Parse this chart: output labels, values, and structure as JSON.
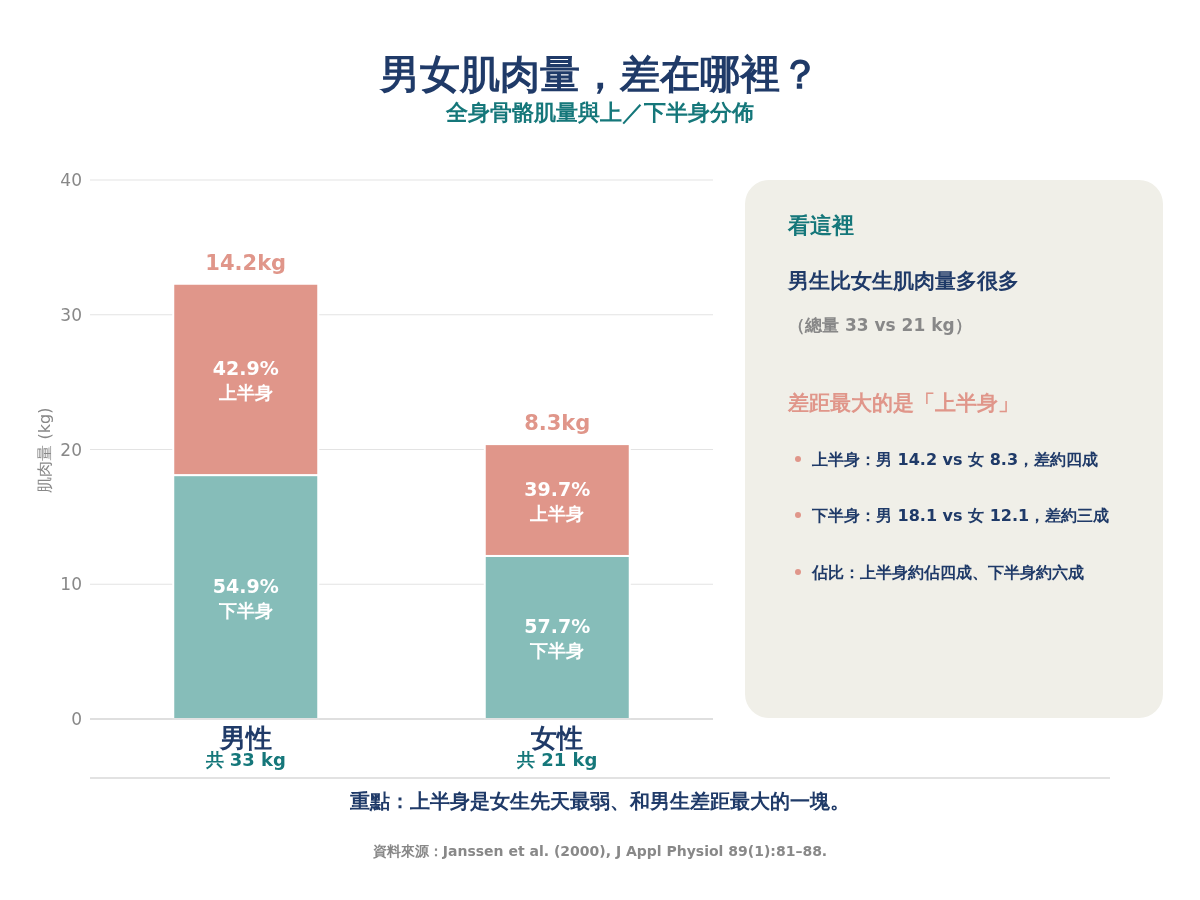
{
  "chart_data": [
    {
      "type": "bar",
      "title": "男女肌肉量，差在哪裡？",
      "subtitle": "全身骨骼肌量與上／下半身分佈",
      "categories": [
        "男性",
        "女性"
      ],
      "stacked": true,
      "ylabel": "肌肉量 (kg)",
      "ylim": [
        0,
        40
      ],
      "yticks": [
        0,
        10,
        20,
        30,
        40
      ],
      "grid": "y",
      "series": [
        {
          "name": "下半身",
          "color": "#86bdb9",
          "values": [
            18.1,
            12.1
          ]
        },
        {
          "name": "上半身",
          "color": "#e0968a",
          "values": [
            14.2,
            8.3
          ],
          "value_labels": [
            "14.2kg",
            "8.3kg"
          ]
        }
      ],
      "annotations": [
        "54.9%",
        "57.7%",
        "42.9%",
        "39.7%",
        "共 33 kg",
        "共 21 kg",
        "重點：上半身是女生先天最弱、和男生差距最大的一塊。",
        "資料來源：Janssen et al. (2000), J Appl Physiol 89(1):81–88."
      ]
    },
    {
      "type": "other",
      "title": "看這裡",
      "annotations": [
        "男生比女生肌肉量多很多",
        "（總量 33 vs 21 kg）",
        "差距最大的是「上半身」",
        "上半身：男 14.2 vs 女 8.3，差約四成",
        "下半身：男 18.1 vs 女 12.1，差約三成",
        "佔比：上半身約佔四成、下半身約六成"
      ]
    }
  ]
}
